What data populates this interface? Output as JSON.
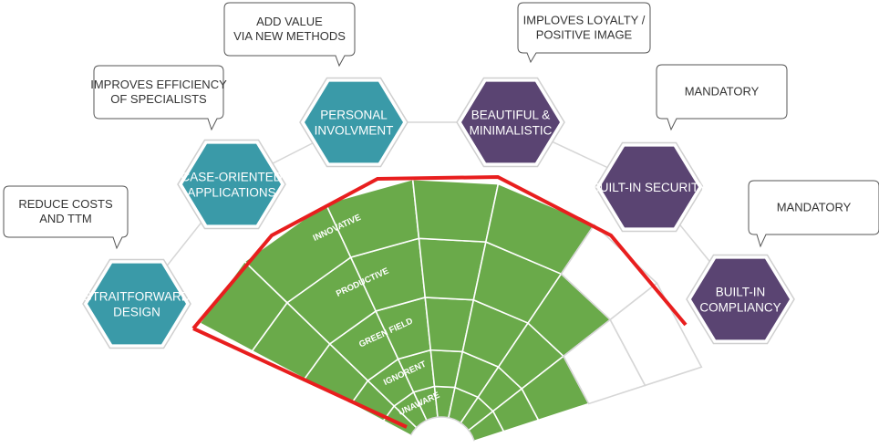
{
  "hexagons": [
    {
      "id": "straitforward",
      "lines": [
        "STRAITFORWARD",
        "DESIGN"
      ],
      "color": "#3a9aa8"
    },
    {
      "id": "case-oriented",
      "lines": [
        "CASE-ORIENTED",
        "APPLICATIONS"
      ],
      "color": "#3a9aa8"
    },
    {
      "id": "personal",
      "lines": [
        "PERSONAL",
        "INVOLVMENT"
      ],
      "color": "#3a9aa8"
    },
    {
      "id": "beautiful",
      "lines": [
        "BEAUTIFUL &",
        "MINIMALISTIC"
      ],
      "color": "#5a4472"
    },
    {
      "id": "security",
      "lines": [
        "BUILT-IN SECURITY"
      ],
      "color": "#5a4472"
    },
    {
      "id": "compliancy",
      "lines": [
        "BUILT-IN",
        "COMPLIANCY"
      ],
      "color": "#5a4472"
    }
  ],
  "callouts": [
    {
      "id": "reduce-costs",
      "lines": [
        "REDUCE COSTS",
        "AND TTM"
      ]
    },
    {
      "id": "improves-efficiency",
      "lines": [
        "IMPROVES EFFICIENCY",
        "OF SPECIALISTS"
      ]
    },
    {
      "id": "add-value",
      "lines": [
        "ADD VALUE",
        "VIA NEW METHODS"
      ]
    },
    {
      "id": "improves-loyalty",
      "lines": [
        "IMPLOVES LOYALTY /",
        "POSITIVE IMAGE"
      ]
    },
    {
      "id": "mandatory-1",
      "lines": [
        "MANDATORY"
      ]
    },
    {
      "id": "mandatory-2",
      "lines": [
        "MANDATORY"
      ]
    }
  ],
  "rings": [
    "UNAWARE",
    "IGNORENT",
    "GREEN FIELD",
    "PRODUCTIVE",
    "INNOVATIVE"
  ],
  "colors": {
    "green": "#6aaa4a",
    "grid": "#ffffff",
    "outline": "#e81e1e",
    "empty_cell": "#ffffff",
    "teal": "#3a9aa8",
    "purple": "#5a4472"
  }
}
